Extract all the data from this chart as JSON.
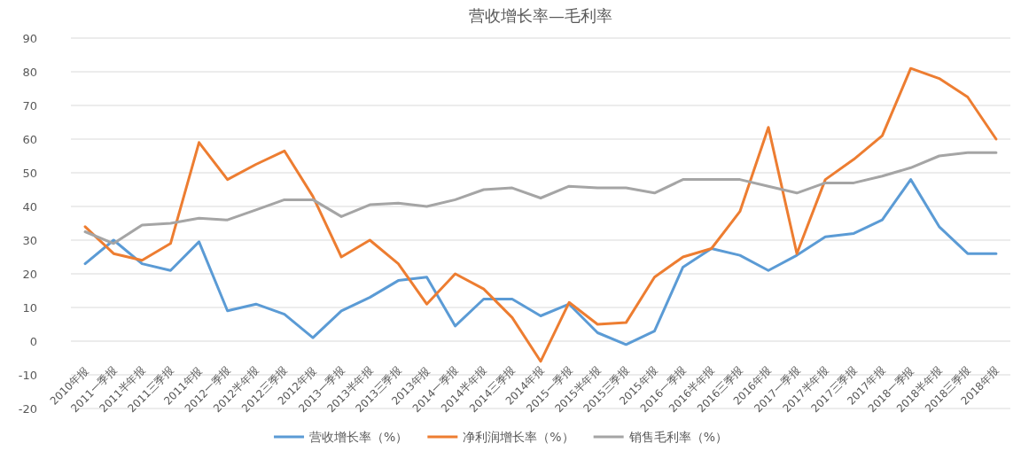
{
  "chart_data": {
    "type": "line",
    "title": "营收增长率—毛利率",
    "categories": [
      "2010年报",
      "2011一季报",
      "2011半年报",
      "2011三季报",
      "2011年报",
      "2012一季报",
      "2012半年报",
      "2012三季报",
      "2012年报",
      "2013一季报",
      "2013半年报",
      "2013三季报",
      "2013年报",
      "2014一季报",
      "2014半年报",
      "2014三季报",
      "2014年报",
      "2015一季报",
      "2015半年报",
      "2015三季报",
      "2015年报",
      "2016一季报",
      "2016半年报",
      "2016三季报",
      "2016年报",
      "2017一季报",
      "2017半年报",
      "2017三季报",
      "2017年报",
      "2018一季报",
      "2018半年报",
      "2018三季报",
      "2018年报"
    ],
    "series": [
      {
        "name": "营收增长率（%）",
        "color": "#5b9bd5",
        "values": [
          23,
          30,
          23,
          21,
          29.5,
          9,
          11,
          8,
          1,
          9,
          13,
          18,
          19,
          4.5,
          12.5,
          12.5,
          7.5,
          11,
          2.5,
          -1,
          3,
          22,
          27.5,
          25.5,
          21,
          25.5,
          31,
          32,
          36,
          48,
          34,
          26,
          26
        ]
      },
      {
        "name": "净利润增长率（%）",
        "color": "#ed7d31",
        "values": [
          34,
          26,
          24,
          29,
          59,
          48,
          52.5,
          56.5,
          43,
          25,
          30,
          23,
          11,
          20,
          15.5,
          7,
          -6,
          11.5,
          5,
          5.5,
          19,
          25,
          27.5,
          38.5,
          63.5,
          26,
          48,
          54,
          61,
          81,
          78,
          72.5,
          60
        ]
      },
      {
        "name": "销售毛利率（%）",
        "color": "#a5a5a5",
        "values": [
          32.5,
          29,
          34.5,
          35,
          36.5,
          36,
          39,
          42,
          42,
          37,
          40.5,
          41,
          40,
          42,
          45,
          45.5,
          42.5,
          46,
          45.5,
          45.5,
          44,
          48,
          48,
          48,
          46,
          44,
          47,
          47,
          49,
          51.5,
          55,
          56,
          56
        ]
      }
    ],
    "ylim": [
      -20,
      90
    ],
    "yticks": [
      -20,
      -10,
      0,
      10,
      20,
      30,
      40,
      50,
      60,
      70,
      80,
      90
    ],
    "grid": "y",
    "legend": "bottom",
    "marker": "none",
    "line_style": "solid"
  }
}
